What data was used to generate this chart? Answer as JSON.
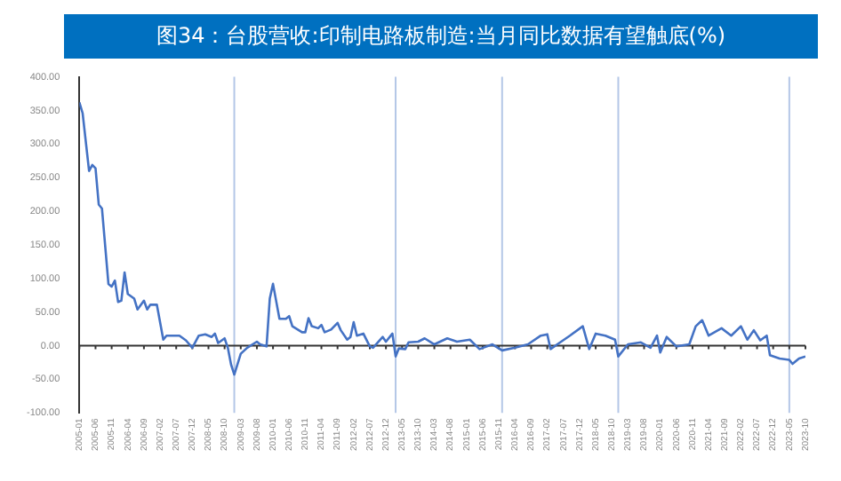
{
  "chart_data": {
    "type": "line",
    "title": "图34：台股营收:印制电路板制造:当月同比数据有望触底(%)",
    "x": [
      "2005-01",
      "2005-02",
      "2005-04",
      "2005-05",
      "2005-06",
      "2005-07",
      "2005-08",
      "2005-10",
      "2005-11",
      "2005-12",
      "2006-01",
      "2006-02",
      "2006-03",
      "2006-04",
      "2006-06",
      "2006-07",
      "2006-09",
      "2006-10",
      "2006-11",
      "2007-01",
      "2007-03",
      "2007-04",
      "2007-08",
      "2007-10",
      "2007-12",
      "2008-02",
      "2008-04",
      "2008-06",
      "2008-07",
      "2008-08",
      "2008-10",
      "2008-11",
      "2008-12",
      "2009-01",
      "2009-03",
      "2009-05",
      "2009-08",
      "2009-09",
      "2009-11",
      "2009-12",
      "2010-01",
      "2010-03",
      "2010-05",
      "2010-06",
      "2010-07",
      "2010-10",
      "2010-11",
      "2010-12",
      "2011-01",
      "2011-03",
      "2011-04",
      "2011-05",
      "2011-07",
      "2011-09",
      "2011-10",
      "2011-12",
      "2012-01",
      "2012-02",
      "2012-03",
      "2012-05",
      "2012-07",
      "2012-08",
      "2012-11",
      "2012-12",
      "2013-02",
      "2013-03",
      "2013-04",
      "2013-06",
      "2013-07",
      "2013-10",
      "2013-12",
      "2014-03",
      "2014-07",
      "2014-10",
      "2015-02",
      "2015-05",
      "2015-09",
      "2015-12",
      "2016-04",
      "2016-08",
      "2016-12",
      "2017-02",
      "2017-03",
      "2017-06",
      "2017-09",
      "2018-01",
      "2018-03",
      "2018-05",
      "2018-08",
      "2018-11",
      "2018-12",
      "2019-03",
      "2019-07",
      "2019-10",
      "2019-12",
      "2020-01",
      "2020-03",
      "2020-06",
      "2020-10",
      "2020-12",
      "2021-02",
      "2021-04",
      "2021-08",
      "2021-11",
      "2022-02",
      "2022-04",
      "2022-06",
      "2022-08",
      "2022-10",
      "2022-11",
      "2023-02",
      "2023-05",
      "2023-06",
      "2023-08",
      "2023-10"
    ],
    "series": [
      {
        "color": "#4472c4",
        "values": [
          362,
          346,
          260,
          269,
          264,
          210,
          204,
          92,
          88,
          97,
          65,
          67,
          109,
          77,
          70,
          54,
          67,
          54,
          61,
          61,
          9,
          15,
          15,
          8,
          -3,
          15,
          17,
          13,
          18,
          4,
          11,
          -3,
          -28,
          -43,
          -12,
          -3,
          6,
          2,
          -1,
          70,
          92,
          40,
          40,
          44,
          29,
          20,
          20,
          41,
          29,
          26,
          31,
          20,
          24,
          34,
          23,
          9,
          13,
          35,
          15,
          18,
          -1,
          -3,
          13,
          6,
          18,
          -16,
          -4,
          -5,
          5,
          6,
          11,
          2,
          11,
          6,
          9,
          -5,
          2,
          -7,
          -3,
          2,
          15,
          17,
          -5,
          5,
          15,
          29,
          -5,
          18,
          15,
          9,
          -16,
          2,
          5,
          -3,
          15,
          -10,
          13,
          -1,
          2,
          29,
          38,
          15,
          26,
          15,
          29,
          9,
          23,
          8,
          15,
          -14,
          -19,
          -21,
          -27,
          -19,
          -16
        ]
      }
    ],
    "xlim": [
      "2005-01",
      "2023-10"
    ],
    "xticks": [
      "2005-01",
      "2005-06",
      "2005-11",
      "2006-04",
      "2006-09",
      "2007-02",
      "2007-07",
      "2007-12",
      "2008-05",
      "2008-10",
      "2009-03",
      "2009-08",
      "2010-01",
      "2010-06",
      "2010-11",
      "2011-04",
      "2011-09",
      "2012-02",
      "2012-07",
      "2012-12",
      "2013-05",
      "2013-10",
      "2014-03",
      "2014-08",
      "2015-01",
      "2015-06",
      "2015-11",
      "2016-04",
      "2016-09",
      "2017-02",
      "2017-07",
      "2017-12",
      "2018-05",
      "2018-10",
      "2019-03",
      "2019-08",
      "2020-01",
      "2020-06",
      "2020-11",
      "2021-04",
      "2021-09",
      "2022-02",
      "2022-07",
      "2022-12",
      "2023-05",
      "2023-10"
    ],
    "ylim": [
      -100,
      400
    ],
    "yticks": [
      {
        "value": -100,
        "label": "-100.00"
      },
      {
        "value": -50,
        "label": "-50.00"
      },
      {
        "value": 0,
        "label": "0.00"
      },
      {
        "value": 50,
        "label": "50.00"
      },
      {
        "value": 100,
        "label": "100.00"
      },
      {
        "value": 150,
        "label": "150.00"
      },
      {
        "value": 200,
        "label": "200.00"
      },
      {
        "value": 250,
        "label": "250.00"
      },
      {
        "value": 300,
        "label": "300.00"
      },
      {
        "value": 350,
        "label": "350.00"
      },
      {
        "value": 400,
        "label": "400.00"
      }
    ],
    "ref_lines": [
      {
        "axis": "x",
        "value": "2009-01",
        "color": "#b4c7e7"
      },
      {
        "axis": "x",
        "value": "2013-03",
        "color": "#b4c7e7"
      },
      {
        "axis": "x",
        "value": "2015-12",
        "color": "#b4c7e7"
      },
      {
        "axis": "x",
        "value": "2018-12",
        "color": "#b4c7e7"
      },
      {
        "axis": "x",
        "value": "2023-05",
        "color": "#b4c7e7"
      }
    ],
    "grid": false,
    "legend": false,
    "marker": "none",
    "line_style": "solid"
  }
}
